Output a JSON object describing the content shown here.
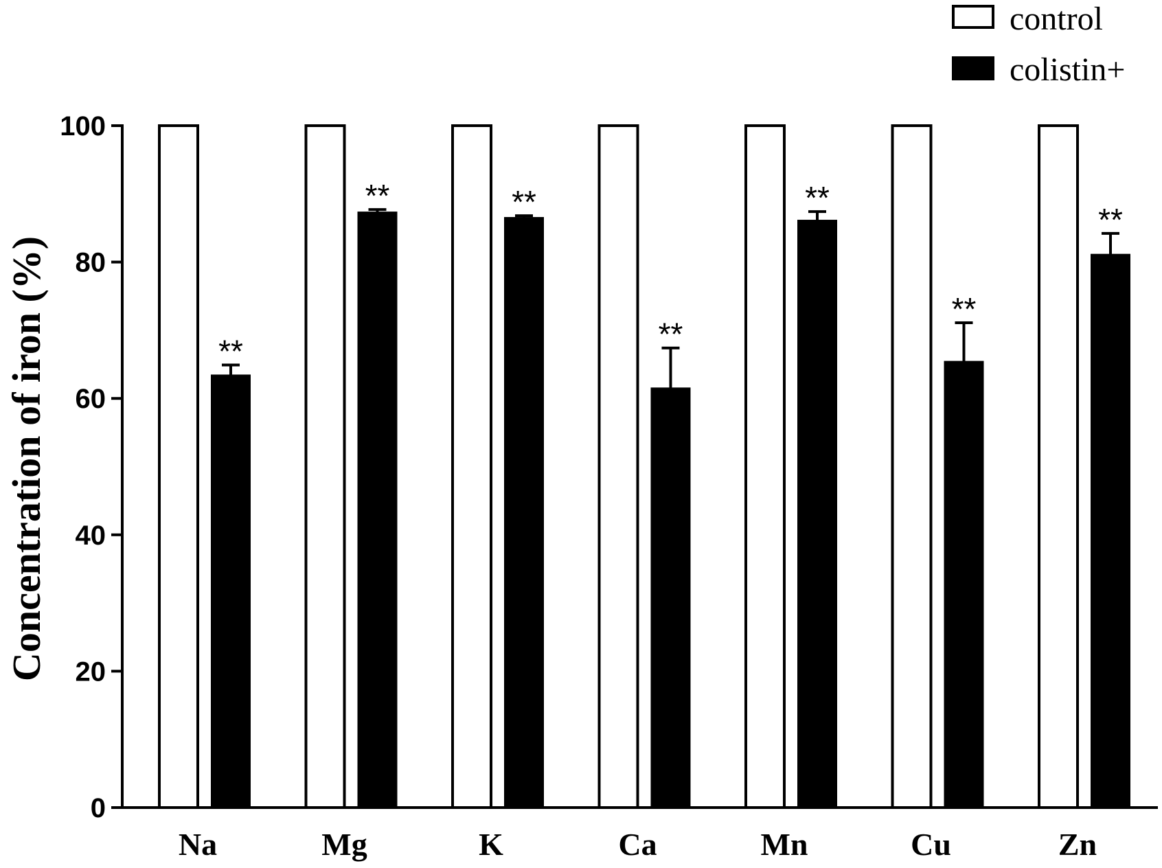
{
  "chart_data": {
    "type": "bar",
    "title": "",
    "xlabel": "",
    "ylabel": "Concentration of iron (%)",
    "ylim": [
      0,
      100
    ],
    "yticks": [
      0,
      20,
      40,
      60,
      80,
      100
    ],
    "categories": [
      "Na",
      "Mg",
      "K",
      "Ca",
      "Mn",
      "Cu",
      "Zn"
    ],
    "series": [
      {
        "name": "control",
        "values": [
          100,
          100,
          100,
          100,
          100,
          100,
          100
        ],
        "errors": [
          0,
          0,
          0,
          0,
          0,
          0,
          0
        ],
        "fill": "#ffffff",
        "stroke": "#000000"
      },
      {
        "name": "colistin+",
        "values": [
          63.4,
          87.3,
          86.5,
          61.5,
          86.1,
          65.4,
          81.1
        ],
        "errors": [
          1.5,
          0.4,
          0.3,
          5.9,
          1.3,
          5.7,
          3.1
        ],
        "fill": "#000000",
        "stroke": "#000000",
        "annotations": [
          "**",
          "**",
          "**",
          "**",
          "**",
          "**",
          "**"
        ]
      }
    ],
    "legend_position": "top-right",
    "grid": false
  }
}
